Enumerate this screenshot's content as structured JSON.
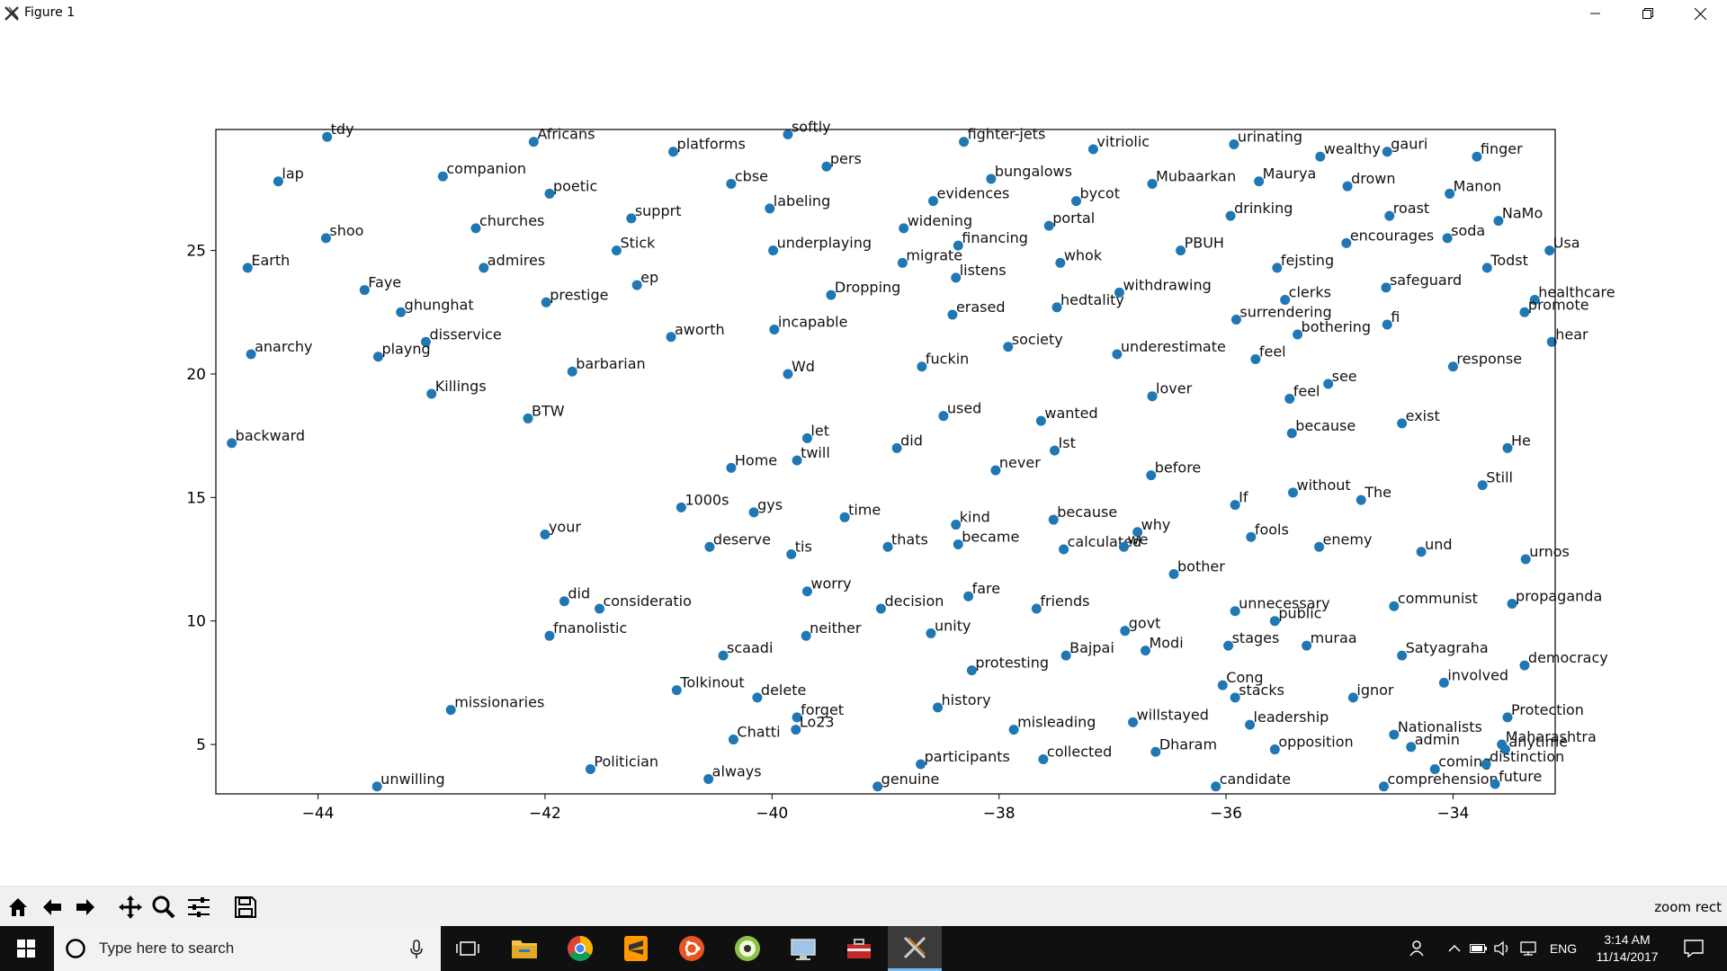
{
  "window": {
    "title": "Figure 1",
    "minimize_glyph": "—",
    "close_glyph": "✕"
  },
  "toolbar": {
    "buttons": [
      "home-icon",
      "back-icon",
      "forward-icon",
      "pan-icon",
      "zoom-icon",
      "configure-subplots-icon",
      "save-icon"
    ],
    "status": "zoom rect"
  },
  "taskbar": {
    "search_placeholder": "Type here to search",
    "apps": [
      "task-view",
      "file-explorer",
      "chrome",
      "sublime-text",
      "ubuntu",
      "app-green",
      "remote-desktop",
      "app-toolbox",
      "xming"
    ],
    "language": "ENG",
    "time": "3:14 AM",
    "date": "11/14/2017"
  },
  "colors": {
    "point": "#1f77b4",
    "taskbar": "#101010",
    "accent": "#76b9ed"
  },
  "chart_data": {
    "type": "scatter",
    "title": "",
    "xlabel": "",
    "ylabel": "",
    "xlim": [
      -44.9,
      -33.1
    ],
    "ylim": [
      3.0,
      29.9
    ],
    "xticks": [
      -44,
      -42,
      -40,
      -38,
      -36,
      -34
    ],
    "yticks": [
      5,
      10,
      15,
      20,
      25
    ],
    "xtick_labels": [
      "−44",
      "−42",
      "−40",
      "−38",
      "−36",
      "−34"
    ],
    "ytick_labels": [
      "5",
      "10",
      "15",
      "20",
      "25"
    ],
    "points": [
      {
        "x": -43.92,
        "y": 29.6,
        "label": "tdy"
      },
      {
        "x": -42.1,
        "y": 29.4,
        "label": "Africans"
      },
      {
        "x": -40.87,
        "y": 29.0,
        "label": "platforms"
      },
      {
        "x": -39.86,
        "y": 29.7,
        "label": "softly"
      },
      {
        "x": -38.31,
        "y": 29.4,
        "label": "fighter-jets"
      },
      {
        "x": -37.17,
        "y": 29.1,
        "label": "vitriolic"
      },
      {
        "x": -35.93,
        "y": 29.3,
        "label": "urinating"
      },
      {
        "x": -35.17,
        "y": 28.8,
        "label": "wealthy"
      },
      {
        "x": -34.58,
        "y": 29.0,
        "label": "gauri"
      },
      {
        "x": -33.79,
        "y": 28.8,
        "label": "finger"
      },
      {
        "x": -44.35,
        "y": 27.8,
        "label": "lap"
      },
      {
        "x": -42.9,
        "y": 28.0,
        "label": "companion"
      },
      {
        "x": -41.96,
        "y": 27.3,
        "label": "poetic"
      },
      {
        "x": -40.36,
        "y": 27.7,
        "label": "cbse"
      },
      {
        "x": -39.52,
        "y": 28.4,
        "label": "pers"
      },
      {
        "x": -38.07,
        "y": 27.9,
        "label": "bungalows"
      },
      {
        "x": -36.65,
        "y": 27.7,
        "label": "Mubaarkan"
      },
      {
        "x": -35.71,
        "y": 27.8,
        "label": "Maurya"
      },
      {
        "x": -34.93,
        "y": 27.6,
        "label": "drown"
      },
      {
        "x": -34.03,
        "y": 27.3,
        "label": "Manon"
      },
      {
        "x": -43.93,
        "y": 25.5,
        "label": "shoo"
      },
      {
        "x": -42.61,
        "y": 25.9,
        "label": "churches"
      },
      {
        "x": -41.24,
        "y": 26.3,
        "label": "supprt"
      },
      {
        "x": -40.02,
        "y": 26.7,
        "label": "labeling"
      },
      {
        "x": -38.58,
        "y": 27.0,
        "label": "evidences"
      },
      {
        "x": -37.32,
        "y": 27.0,
        "label": "bycot"
      },
      {
        "x": -35.96,
        "y": 26.4,
        "label": "drinking"
      },
      {
        "x": -34.56,
        "y": 26.4,
        "label": "roast"
      },
      {
        "x": -33.6,
        "y": 26.2,
        "label": "NaMo"
      },
      {
        "x": -44.62,
        "y": 24.3,
        "label": "Earth"
      },
      {
        "x": -42.54,
        "y": 24.3,
        "label": "admires"
      },
      {
        "x": -41.37,
        "y": 25.0,
        "label": "Stick"
      },
      {
        "x": -39.99,
        "y": 25.0,
        "label": "underplaying"
      },
      {
        "x": -38.84,
        "y": 25.9,
        "label": "widening"
      },
      {
        "x": -38.36,
        "y": 25.2,
        "label": "financing"
      },
      {
        "x": -37.56,
        "y": 26.0,
        "label": "portal"
      },
      {
        "x": -36.4,
        "y": 25.0,
        "label": "PBUH"
      },
      {
        "x": -34.94,
        "y": 25.3,
        "label": "encourages"
      },
      {
        "x": -34.05,
        "y": 25.5,
        "label": "soda"
      },
      {
        "x": -33.15,
        "y": 25.0,
        "label": "Usa"
      },
      {
        "x": -43.59,
        "y": 23.4,
        "label": "Faye"
      },
      {
        "x": -43.27,
        "y": 22.5,
        "label": "ghunghat"
      },
      {
        "x": -41.19,
        "y": 23.6,
        "label": "ep"
      },
      {
        "x": -39.48,
        "y": 23.2,
        "label": "Dropping"
      },
      {
        "x": -38.85,
        "y": 24.5,
        "label": "migrate"
      },
      {
        "x": -38.38,
        "y": 23.9,
        "label": "listens"
      },
      {
        "x": -37.46,
        "y": 24.5,
        "label": "whok"
      },
      {
        "x": -35.55,
        "y": 24.3,
        "label": "fejsting"
      },
      {
        "x": -34.59,
        "y": 23.5,
        "label": "safeguard"
      },
      {
        "x": -33.7,
        "y": 24.3,
        "label": "Todst"
      },
      {
        "x": -43.05,
        "y": 21.3,
        "label": "disservice"
      },
      {
        "x": -41.99,
        "y": 22.9,
        "label": "prestige"
      },
      {
        "x": -40.89,
        "y": 21.5,
        "label": "aworth"
      },
      {
        "x": -39.98,
        "y": 21.8,
        "label": "incapable"
      },
      {
        "x": -38.41,
        "y": 22.4,
        "label": "erased"
      },
      {
        "x": -37.49,
        "y": 22.7,
        "label": "hedtality"
      },
      {
        "x": -36.94,
        "y": 23.3,
        "label": "withdrawing"
      },
      {
        "x": -35.48,
        "y": 23.0,
        "label": "clerks"
      },
      {
        "x": -35.91,
        "y": 22.2,
        "label": "surrendering"
      },
      {
        "x": -34.58,
        "y": 22.0,
        "label": "fi"
      },
      {
        "x": -33.28,
        "y": 23.0,
        "label": "healthcare"
      },
      {
        "x": -44.59,
        "y": 20.8,
        "label": "anarchy"
      },
      {
        "x": -43.47,
        "y": 20.7,
        "label": "playng"
      },
      {
        "x": -41.76,
        "y": 20.1,
        "label": "barbarian"
      },
      {
        "x": -39.86,
        "y": 20.0,
        "label": "Wd"
      },
      {
        "x": -38.68,
        "y": 20.3,
        "label": "fuckin"
      },
      {
        "x": -37.92,
        "y": 21.1,
        "label": "society"
      },
      {
        "x": -36.96,
        "y": 20.8,
        "label": "underestimate"
      },
      {
        "x": -35.74,
        "y": 20.6,
        "label": "feel"
      },
      {
        "x": -35.37,
        "y": 21.6,
        "label": "bothering"
      },
      {
        "x": -33.37,
        "y": 22.5,
        "label": "promote"
      },
      {
        "x": -43.0,
        "y": 19.2,
        "label": "Killings"
      },
      {
        "x": -42.15,
        "y": 18.2,
        "label": "BTW"
      },
      {
        "x": -39.69,
        "y": 17.4,
        "label": "let"
      },
      {
        "x": -38.49,
        "y": 18.3,
        "label": "used"
      },
      {
        "x": -37.63,
        "y": 18.1,
        "label": "wanted"
      },
      {
        "x": -36.65,
        "y": 19.1,
        "label": "lover"
      },
      {
        "x": -35.44,
        "y": 19.0,
        "label": "feel"
      },
      {
        "x": -35.1,
        "y": 19.6,
        "label": "see"
      },
      {
        "x": -34.0,
        "y": 20.3,
        "label": "response"
      },
      {
        "x": -33.13,
        "y": 21.3,
        "label": "hear"
      },
      {
        "x": -44.76,
        "y": 17.2,
        "label": "backward"
      },
      {
        "x": -40.36,
        "y": 16.2,
        "label": "Home"
      },
      {
        "x": -39.78,
        "y": 16.5,
        "label": "twill"
      },
      {
        "x": -38.9,
        "y": 17.0,
        "label": "did"
      },
      {
        "x": -38.03,
        "y": 16.1,
        "label": "never"
      },
      {
        "x": -37.51,
        "y": 16.9,
        "label": "Ist"
      },
      {
        "x": -36.66,
        "y": 15.9,
        "label": "before"
      },
      {
        "x": -35.42,
        "y": 17.6,
        "label": "because"
      },
      {
        "x": -34.45,
        "y": 18.0,
        "label": "exist"
      },
      {
        "x": -33.52,
        "y": 17.0,
        "label": "He"
      },
      {
        "x": -40.8,
        "y": 14.6,
        "label": "1000s"
      },
      {
        "x": -40.16,
        "y": 14.4,
        "label": "gys"
      },
      {
        "x": -39.36,
        "y": 14.2,
        "label": "time"
      },
      {
        "x": -38.38,
        "y": 13.9,
        "label": "kind"
      },
      {
        "x": -37.52,
        "y": 14.1,
        "label": "because"
      },
      {
        "x": -36.78,
        "y": 13.6,
        "label": "why"
      },
      {
        "x": -35.92,
        "y": 14.7,
        "label": "If"
      },
      {
        "x": -35.41,
        "y": 15.2,
        "label": "without"
      },
      {
        "x": -34.81,
        "y": 14.9,
        "label": "The"
      },
      {
        "x": -33.74,
        "y": 15.5,
        "label": "Still"
      },
      {
        "x": -42.0,
        "y": 13.5,
        "label": "your"
      },
      {
        "x": -40.55,
        "y": 13.0,
        "label": "deserve"
      },
      {
        "x": -39.83,
        "y": 12.7,
        "label": "tis"
      },
      {
        "x": -38.98,
        "y": 13.0,
        "label": "thats"
      },
      {
        "x": -38.36,
        "y": 13.1,
        "label": "became"
      },
      {
        "x": -37.43,
        "y": 12.9,
        "label": "calculated"
      },
      {
        "x": -36.9,
        "y": 13.0,
        "label": "we"
      },
      {
        "x": -35.78,
        "y": 13.4,
        "label": "fools"
      },
      {
        "x": -35.18,
        "y": 13.0,
        "label": "enemy"
      },
      {
        "x": -34.28,
        "y": 12.8,
        "label": "und"
      },
      {
        "x": -33.36,
        "y": 12.5,
        "label": "urnos"
      },
      {
        "x": -41.83,
        "y": 10.8,
        "label": "did"
      },
      {
        "x": -41.52,
        "y": 10.5,
        "label": "consideratio"
      },
      {
        "x": -39.69,
        "y": 11.2,
        "label": "worry"
      },
      {
        "x": -39.04,
        "y": 10.5,
        "label": "decision"
      },
      {
        "x": -38.27,
        "y": 11.0,
        "label": "fare"
      },
      {
        "x": -37.67,
        "y": 10.5,
        "label": "friends"
      },
      {
        "x": -36.46,
        "y": 11.9,
        "label": "bother"
      },
      {
        "x": -35.92,
        "y": 10.4,
        "label": "unnecessary"
      },
      {
        "x": -35.57,
        "y": 10.0,
        "label": "public"
      },
      {
        "x": -34.52,
        "y": 10.6,
        "label": "communist"
      },
      {
        "x": -33.48,
        "y": 10.7,
        "label": "propaganda"
      },
      {
        "x": -41.96,
        "y": 9.4,
        "label": "fnanolistic"
      },
      {
        "x": -39.7,
        "y": 9.4,
        "label": "neither"
      },
      {
        "x": -38.6,
        "y": 9.5,
        "label": "unity"
      },
      {
        "x": -36.89,
        "y": 9.6,
        "label": "govt"
      },
      {
        "x": -35.98,
        "y": 9.0,
        "label": "stages"
      },
      {
        "x": -35.29,
        "y": 9.0,
        "label": "muraa"
      },
      {
        "x": -34.45,
        "y": 8.6,
        "label": "Satyagraha"
      },
      {
        "x": -33.37,
        "y": 8.2,
        "label": "democracy"
      },
      {
        "x": -40.43,
        "y": 8.6,
        "label": "scaadi"
      },
      {
        "x": -38.24,
        "y": 8.0,
        "label": "protesting"
      },
      {
        "x": -37.41,
        "y": 8.6,
        "label": "Bajpai"
      },
      {
        "x": -36.71,
        "y": 8.8,
        "label": "Modi"
      },
      {
        "x": -36.03,
        "y": 7.4,
        "label": "Cong"
      },
      {
        "x": -35.92,
        "y": 6.9,
        "label": "stacks"
      },
      {
        "x": -34.88,
        "y": 6.9,
        "label": "ignor"
      },
      {
        "x": -34.08,
        "y": 7.5,
        "label": "involved"
      },
      {
        "x": -33.52,
        "y": 6.1,
        "label": "Protection"
      },
      {
        "x": -40.84,
        "y": 7.2,
        "label": "Tolkinout"
      },
      {
        "x": -40.13,
        "y": 6.9,
        "label": "delete"
      },
      {
        "x": -39.78,
        "y": 6.1,
        "label": "forget"
      },
      {
        "x": -38.54,
        "y": 6.5,
        "label": "history"
      },
      {
        "x": -37.87,
        "y": 5.6,
        "label": "misleading"
      },
      {
        "x": -36.82,
        "y": 5.9,
        "label": "willstayed"
      },
      {
        "x": -35.79,
        "y": 5.8,
        "label": "leadership"
      },
      {
        "x": -34.52,
        "y": 5.4,
        "label": "Nationalists"
      },
      {
        "x": -33.57,
        "y": 5.0,
        "label": "Maharashtra"
      },
      {
        "x": -42.83,
        "y": 6.4,
        "label": "missionaries"
      },
      {
        "x": -40.34,
        "y": 5.2,
        "label": "Chatti"
      },
      {
        "x": -39.79,
        "y": 5.6,
        "label": "Lo23"
      },
      {
        "x": -37.61,
        "y": 4.4,
        "label": "collected"
      },
      {
        "x": -36.62,
        "y": 4.7,
        "label": "Dharam"
      },
      {
        "x": -35.57,
        "y": 4.8,
        "label": "opposition"
      },
      {
        "x": -34.37,
        "y": 4.9,
        "label": "admin"
      },
      {
        "x": -33.54,
        "y": 4.8,
        "label": "anytime"
      },
      {
        "x": -43.48,
        "y": 3.3,
        "label": "unwilling"
      },
      {
        "x": -41.6,
        "y": 4.0,
        "label": "Politician"
      },
      {
        "x": -40.56,
        "y": 3.6,
        "label": "always"
      },
      {
        "x": -38.69,
        "y": 4.2,
        "label": "participants"
      },
      {
        "x": -39.07,
        "y": 3.3,
        "label": "genuine"
      },
      {
        "x": -36.09,
        "y": 3.3,
        "label": "candidate"
      },
      {
        "x": -34.61,
        "y": 3.3,
        "label": "comprehension"
      },
      {
        "x": -33.63,
        "y": 3.4,
        "label": "future"
      },
      {
        "x": -34.16,
        "y": 4.0,
        "label": "coming"
      },
      {
        "x": -33.71,
        "y": 4.2,
        "label": "distinction"
      }
    ]
  }
}
